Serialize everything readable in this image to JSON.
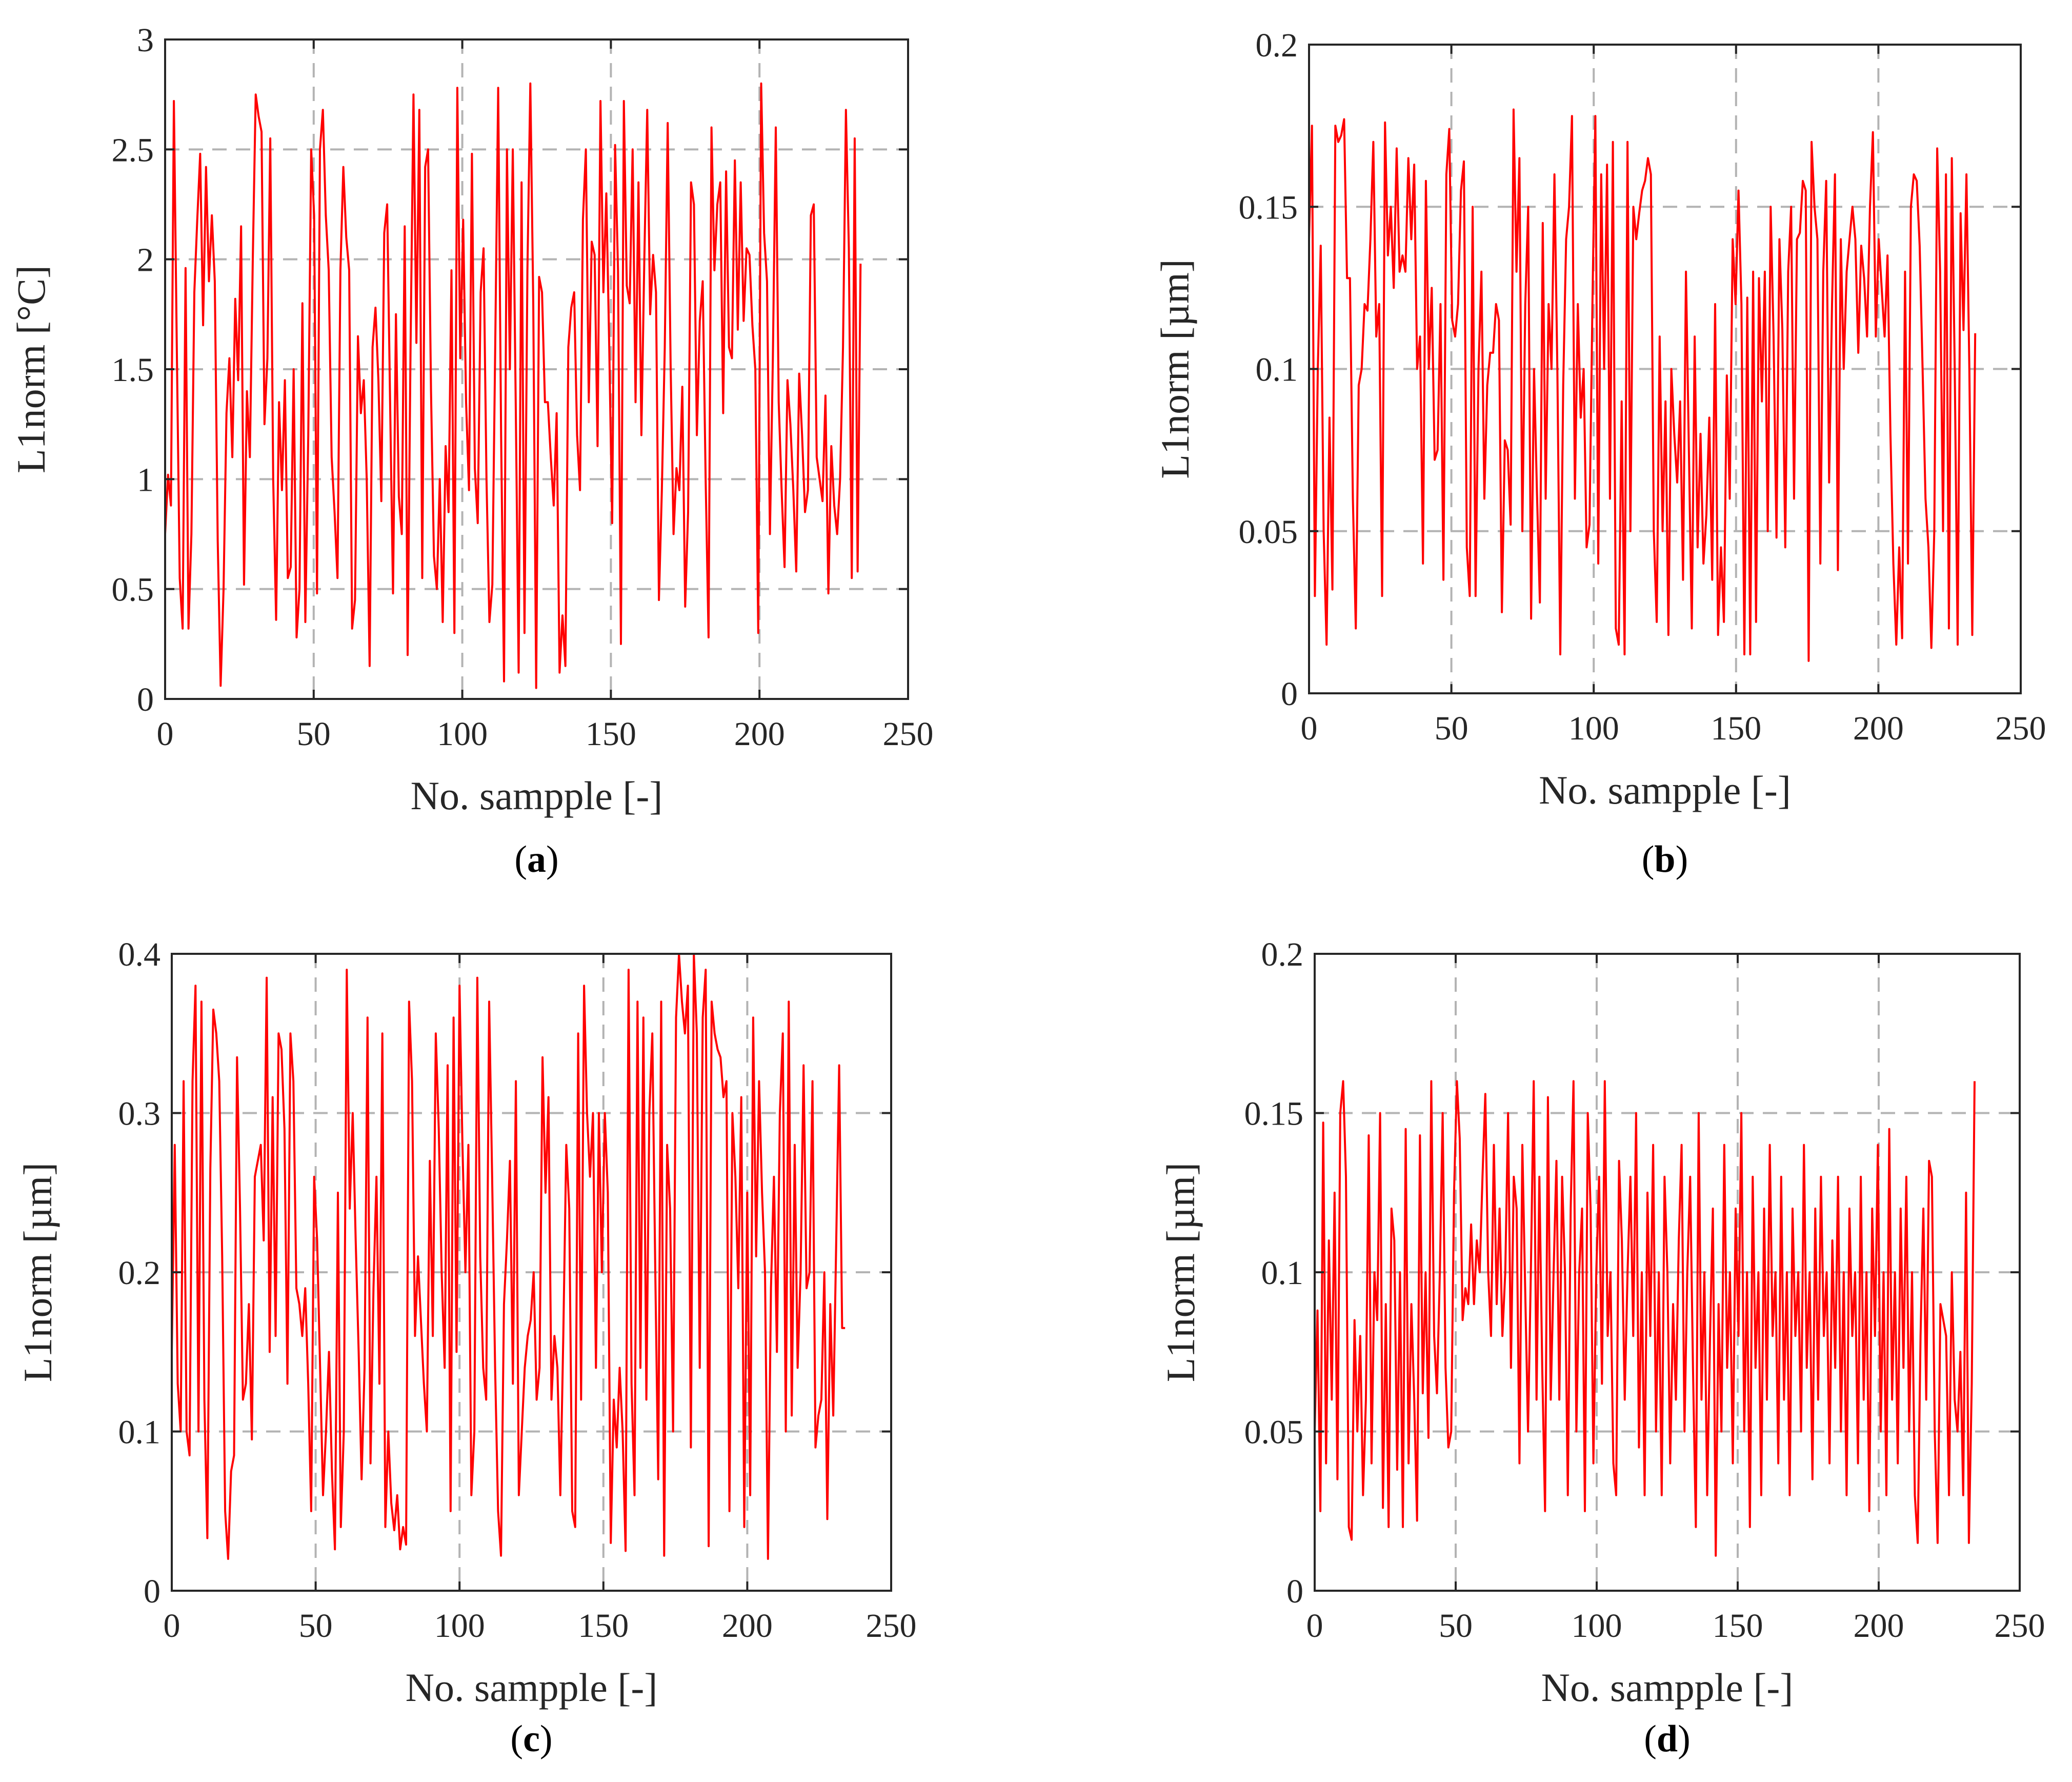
{
  "figure": {
    "line_color": "#ff0000",
    "axis_color": "#262626",
    "grid_color": "#b3b3b3"
  },
  "chart_data": [
    {
      "id": "a",
      "type": "line",
      "caption_letter": "a",
      "xlabel": "No. sampple [-]",
      "ylabel": "L1norm [°C]",
      "xlim": [
        0,
        250
      ],
      "ylim": [
        0,
        3
      ],
      "xticks": [
        0,
        50,
        100,
        150,
        200,
        250
      ],
      "yticks": [
        0,
        0.5,
        1,
        1.5,
        2,
        2.5,
        3
      ],
      "grid": true,
      "series": [
        {
          "name": "L1norm",
          "values": [
            0.75,
            1.02,
            0.88,
            2.72,
            1.6,
            0.55,
            0.32,
            1.96,
            0.32,
            0.75,
            1.85,
            2.18,
            2.48,
            1.7,
            2.42,
            1.9,
            2.2,
            1.9,
            0.72,
            0.06,
            0.5,
            1.3,
            1.55,
            1.1,
            1.82,
            1.45,
            2.15,
            0.52,
            1.4,
            1.1,
            2.0,
            2.75,
            2.65,
            2.58,
            1.25,
            1.55,
            2.55,
            1.0,
            0.36,
            1.35,
            0.95,
            1.45,
            0.55,
            0.6,
            1.5,
            0.28,
            0.5,
            1.8,
            0.35,
            1.2,
            2.5,
            2.2,
            0.48,
            2.5,
            2.68,
            2.2,
            1.95,
            1.1,
            0.85,
            0.55,
            1.95,
            2.42,
            2.1,
            1.95,
            0.32,
            0.45,
            1.65,
            1.3,
            1.45,
            1.0,
            0.15,
            1.6,
            1.78,
            1.45,
            0.9,
            2.12,
            2.25,
            1.35,
            0.48,
            1.75,
            0.92,
            0.75,
            2.15,
            0.2,
            1.6,
            2.75,
            1.62,
            2.68,
            0.55,
            2.42,
            2.5,
            1.4,
            0.65,
            0.5,
            1.0,
            0.35,
            1.15,
            0.85,
            1.95,
            0.3,
            2.78,
            1.55,
            2.18,
            1.35,
            0.95,
            2.48,
            1.05,
            0.8,
            1.85,
            2.05,
            1.0,
            0.35,
            0.52,
            1.62,
            2.78,
            1.2,
            0.08,
            2.5,
            1.5,
            2.5,
            1.35,
            0.12,
            2.35,
            0.3,
            1.95,
            2.8,
            1.8,
            0.05,
            1.92,
            1.85,
            1.35,
            1.35,
            1.1,
            0.88,
            1.3,
            0.12,
            0.38,
            0.15,
            1.6,
            1.78,
            1.85,
            1.2,
            0.95,
            2.18,
            2.5,
            1.35,
            2.08,
            2.02,
            1.15,
            2.72,
            1.85,
            2.3,
            1.6,
            0.8,
            2.52,
            1.95,
            0.25,
            2.72,
            1.88,
            1.8,
            2.5,
            1.35,
            2.35,
            1.2,
            2.0,
            2.68,
            1.75,
            2.02,
            1.85,
            0.45,
            0.95,
            1.6,
            2.62,
            1.52,
            0.75,
            1.05,
            0.95,
            1.42,
            0.42,
            0.85,
            2.35,
            2.25,
            1.2,
            1.72,
            1.9,
            1.0,
            0.28,
            2.6,
            1.95,
            2.25,
            2.35,
            1.3,
            2.4,
            1.6,
            1.55,
            2.45,
            1.68,
            2.35,
            1.72,
            2.05,
            2.02,
            1.7,
            1.5,
            0.3,
            2.8,
            2.12,
            1.9,
            0.75,
            1.55,
            2.6,
            1.35,
            0.95,
            0.6,
            1.45,
            1.25,
            0.95,
            0.58,
            1.48,
            1.2,
            0.85,
            0.95,
            2.2,
            2.25,
            1.1,
            1.0,
            0.9,
            1.38,
            0.48,
            1.15,
            0.88,
            0.75,
            1.0,
            1.6,
            2.68,
            2.05,
            0.55,
            2.55,
            0.58,
            1.98
          ]
        }
      ]
    },
    {
      "id": "b",
      "type": "line",
      "caption_letter": "b",
      "xlabel": "No. sampple [-]",
      "ylabel": "L1norm [µm]",
      "xlim": [
        0,
        250
      ],
      "ylim": [
        0,
        0.2
      ],
      "xticks": [
        0,
        50,
        100,
        150,
        200,
        250
      ],
      "yticks": [
        0,
        0.05,
        0.1,
        0.15,
        0.2
      ],
      "grid": true,
      "series": [
        {
          "name": "L1norm",
          "values": [
            0.14,
            0.175,
            0.03,
            0.1,
            0.138,
            0.05,
            0.015,
            0.085,
            0.032,
            0.175,
            0.17,
            0.172,
            0.177,
            0.128,
            0.128,
            0.06,
            0.02,
            0.095,
            0.1,
            0.12,
            0.118,
            0.14,
            0.17,
            0.11,
            0.12,
            0.03,
            0.176,
            0.135,
            0.15,
            0.125,
            0.168,
            0.13,
            0.135,
            0.13,
            0.165,
            0.14,
            0.163,
            0.1,
            0.11,
            0.04,
            0.158,
            0.1,
            0.125,
            0.072,
            0.075,
            0.12,
            0.035,
            0.16,
            0.174,
            0.115,
            0.11,
            0.12,
            0.155,
            0.164,
            0.045,
            0.03,
            0.15,
            0.03,
            0.1,
            0.13,
            0.06,
            0.095,
            0.105,
            0.105,
            0.12,
            0.115,
            0.025,
            0.078,
            0.075,
            0.052,
            0.18,
            0.13,
            0.165,
            0.05,
            0.12,
            0.15,
            0.023,
            0.1,
            0.062,
            0.028,
            0.145,
            0.06,
            0.12,
            0.1,
            0.16,
            0.1,
            0.012,
            0.095,
            0.14,
            0.15,
            0.178,
            0.06,
            0.12,
            0.085,
            0.1,
            0.045,
            0.052,
            0.12,
            0.178,
            0.04,
            0.16,
            0.1,
            0.163,
            0.06,
            0.17,
            0.02,
            0.015,
            0.09,
            0.012,
            0.17,
            0.05,
            0.15,
            0.14,
            0.148,
            0.155,
            0.158,
            0.165,
            0.16,
            0.05,
            0.022,
            0.11,
            0.05,
            0.09,
            0.018,
            0.1,
            0.08,
            0.065,
            0.09,
            0.035,
            0.13,
            0.075,
            0.02,
            0.11,
            0.045,
            0.08,
            0.04,
            0.055,
            0.085,
            0.035,
            0.12,
            0.018,
            0.045,
            0.022,
            0.098,
            0.06,
            0.14,
            0.12,
            0.155,
            0.12,
            0.012,
            0.122,
            0.012,
            0.13,
            0.022,
            0.128,
            0.09,
            0.13,
            0.05,
            0.15,
            0.11,
            0.048,
            0.14,
            0.112,
            0.045,
            0.13,
            0.15,
            0.06,
            0.14,
            0.142,
            0.158,
            0.155,
            0.01,
            0.17,
            0.15,
            0.14,
            0.04,
            0.13,
            0.158,
            0.065,
            0.12,
            0.16,
            0.038,
            0.14,
            0.1,
            0.13,
            0.14,
            0.15,
            0.14,
            0.105,
            0.138,
            0.128,
            0.11,
            0.15,
            0.173,
            0.11,
            0.14,
            0.125,
            0.11,
            0.135,
            0.08,
            0.04,
            0.015,
            0.045,
            0.017,
            0.13,
            0.04,
            0.15,
            0.16,
            0.158,
            0.138,
            0.1,
            0.06,
            0.045,
            0.014,
            0.05,
            0.168,
            0.13,
            0.05,
            0.16,
            0.02,
            0.165,
            0.1,
            0.015,
            0.148,
            0.112,
            0.16,
            0.1,
            0.018,
            0.111
          ]
        }
      ]
    },
    {
      "id": "c",
      "type": "line",
      "caption_letter": "c",
      "xlabel": "No. sampple [-]",
      "ylabel": "L1norm [µm]",
      "xlim": [
        0,
        250
      ],
      "ylim": [
        0,
        0.4
      ],
      "xticks": [
        0,
        50,
        100,
        150,
        200,
        250
      ],
      "yticks": [
        0,
        0.1,
        0.2,
        0.3,
        0.4
      ],
      "grid": true,
      "series": [
        {
          "name": "L1norm",
          "values": [
            0.15,
            0.28,
            0.13,
            0.1,
            0.32,
            0.1,
            0.085,
            0.32,
            0.38,
            0.1,
            0.37,
            0.12,
            0.033,
            0.265,
            0.365,
            0.35,
            0.32,
            0.21,
            0.05,
            0.02,
            0.075,
            0.085,
            0.335,
            0.24,
            0.12,
            0.13,
            0.18,
            0.095,
            0.26,
            0.27,
            0.28,
            0.22,
            0.385,
            0.15,
            0.31,
            0.16,
            0.35,
            0.34,
            0.29,
            0.13,
            0.35,
            0.32,
            0.19,
            0.18,
            0.16,
            0.19,
            0.13,
            0.05,
            0.26,
            0.22,
            0.14,
            0.06,
            0.1,
            0.15,
            0.075,
            0.026,
            0.25,
            0.04,
            0.1,
            0.39,
            0.24,
            0.3,
            0.22,
            0.15,
            0.07,
            0.14,
            0.36,
            0.08,
            0.19,
            0.26,
            0.13,
            0.35,
            0.04,
            0.1,
            0.055,
            0.038,
            0.06,
            0.026,
            0.04,
            0.029,
            0.37,
            0.32,
            0.16,
            0.21,
            0.17,
            0.13,
            0.1,
            0.27,
            0.16,
            0.35,
            0.29,
            0.2,
            0.14,
            0.33,
            0.05,
            0.36,
            0.15,
            0.38,
            0.28,
            0.2,
            0.28,
            0.06,
            0.1,
            0.385,
            0.21,
            0.14,
            0.12,
            0.37,
            0.26,
            0.14,
            0.05,
            0.022,
            0.18,
            0.22,
            0.27,
            0.13,
            0.32,
            0.06,
            0.1,
            0.14,
            0.16,
            0.17,
            0.2,
            0.12,
            0.14,
            0.335,
            0.25,
            0.31,
            0.12,
            0.16,
            0.14,
            0.06,
            0.16,
            0.28,
            0.24,
            0.05,
            0.04,
            0.35,
            0.12,
            0.38,
            0.3,
            0.26,
            0.3,
            0.14,
            0.3,
            0.2,
            0.3,
            0.25,
            0.03,
            0.12,
            0.09,
            0.14,
            0.1,
            0.025,
            0.39,
            0.13,
            0.06,
            0.37,
            0.14,
            0.36,
            0.12,
            0.3,
            0.35,
            0.2,
            0.07,
            0.37,
            0.022,
            0.28,
            0.24,
            0.1,
            0.36,
            0.4,
            0.37,
            0.35,
            0.38,
            0.09,
            0.4,
            0.35,
            0.14,
            0.36,
            0.39,
            0.028,
            0.37,
            0.35,
            0.34,
            0.335,
            0.31,
            0.32,
            0.05,
            0.3,
            0.26,
            0.19,
            0.31,
            0.04,
            0.25,
            0.06,
            0.36,
            0.21,
            0.32,
            0.25,
            0.2,
            0.02,
            0.19,
            0.26,
            0.15,
            0.3,
            0.35,
            0.1,
            0.37,
            0.11,
            0.28,
            0.14,
            0.2,
            0.33,
            0.19,
            0.2,
            0.32,
            0.09,
            0.11,
            0.12,
            0.2,
            0.045,
            0.18,
            0.11,
            0.22,
            0.33,
            0.165,
            0.165
          ]
        }
      ]
    },
    {
      "id": "d",
      "type": "line",
      "caption_letter": "d",
      "xlabel": "No. sampple [-]",
      "ylabel": "L1norm [µm]",
      "xlim": [
        0,
        250
      ],
      "ylim": [
        0,
        0.2
      ],
      "xticks": [
        0,
        50,
        100,
        150,
        200,
        250
      ],
      "yticks": [
        0,
        0.05,
        0.1,
        0.15,
        0.2
      ],
      "grid": true,
      "series": [
        {
          "name": "L1norm",
          "values": [
            0.05,
            0.088,
            0.025,
            0.147,
            0.04,
            0.11,
            0.06,
            0.125,
            0.035,
            0.15,
            0.16,
            0.13,
            0.02,
            0.016,
            0.085,
            0.05,
            0.08,
            0.03,
            0.06,
            0.143,
            0.04,
            0.1,
            0.085,
            0.15,
            0.026,
            0.09,
            0.02,
            0.12,
            0.11,
            0.038,
            0.1,
            0.02,
            0.145,
            0.04,
            0.09,
            0.06,
            0.022,
            0.143,
            0.062,
            0.1,
            0.048,
            0.16,
            0.08,
            0.062,
            0.1,
            0.15,
            0.07,
            0.045,
            0.05,
            0.125,
            0.16,
            0.142,
            0.085,
            0.095,
            0.09,
            0.115,
            0.09,
            0.11,
            0.1,
            0.13,
            0.156,
            0.1,
            0.08,
            0.14,
            0.09,
            0.12,
            0.08,
            0.1,
            0.15,
            0.07,
            0.13,
            0.12,
            0.04,
            0.14,
            0.095,
            0.05,
            0.1,
            0.16,
            0.06,
            0.13,
            0.07,
            0.025,
            0.155,
            0.06,
            0.1,
            0.135,
            0.06,
            0.13,
            0.1,
            0.03,
            0.12,
            0.16,
            0.05,
            0.1,
            0.12,
            0.025,
            0.15,
            0.12,
            0.04,
            0.1,
            0.13,
            0.065,
            0.16,
            0.08,
            0.1,
            0.04,
            0.03,
            0.135,
            0.11,
            0.06,
            0.1,
            0.13,
            0.08,
            0.15,
            0.045,
            0.1,
            0.03,
            0.125,
            0.08,
            0.14,
            0.05,
            0.1,
            0.03,
            0.13,
            0.1,
            0.04,
            0.09,
            0.06,
            0.11,
            0.14,
            0.05,
            0.1,
            0.13,
            0.07,
            0.02,
            0.15,
            0.06,
            0.1,
            0.03,
            0.08,
            0.12,
            0.011,
            0.09,
            0.05,
            0.14,
            0.07,
            0.1,
            0.04,
            0.12,
            0.08,
            0.15,
            0.05,
            0.1,
            0.02,
            0.13,
            0.07,
            0.1,
            0.03,
            0.12,
            0.06,
            0.14,
            0.08,
            0.1,
            0.04,
            0.13,
            0.06,
            0.1,
            0.03,
            0.12,
            0.08,
            0.1,
            0.05,
            0.14,
            0.07,
            0.1,
            0.035,
            0.12,
            0.06,
            0.13,
            0.08,
            0.1,
            0.04,
            0.11,
            0.07,
            0.13,
            0.05,
            0.1,
            0.03,
            0.12,
            0.08,
            0.1,
            0.04,
            0.13,
            0.06,
            0.1,
            0.025,
            0.12,
            0.08,
            0.14,
            0.05,
            0.1,
            0.03,
            0.145,
            0.06,
            0.1,
            0.04,
            0.12,
            0.07,
            0.13,
            0.05,
            0.1,
            0.03,
            0.015,
            0.08,
            0.12,
            0.06,
            0.135,
            0.13,
            0.05,
            0.015,
            0.09,
            0.085,
            0.08,
            0.03,
            0.1,
            0.06,
            0.05,
            0.075,
            0.03,
            0.125,
            0.015,
            0.065,
            0.16
          ]
        }
      ]
    }
  ]
}
